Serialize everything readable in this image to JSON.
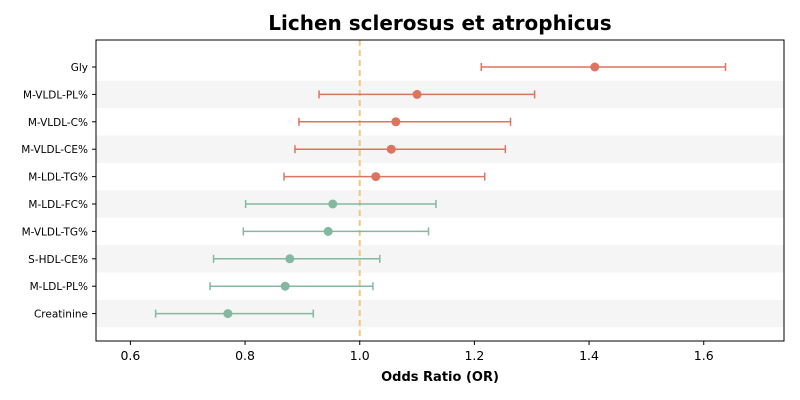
{
  "chart_data": {
    "type": "forest",
    "title": "Lichen sclerosus et atrophicus",
    "xlabel": "Odds Ratio (OR)",
    "ylabel": "",
    "xlim": [
      0.54,
      1.74
    ],
    "xticks": [
      0.6,
      0.8,
      1.0,
      1.2,
      1.4,
      1.6
    ],
    "xtick_labels": [
      "0.6",
      "0.8",
      "1.0",
      "1.2",
      "1.4",
      "1.6"
    ],
    "reference_line": 1.0,
    "grid": false,
    "categories": [
      "Gly",
      "M-VLDL-PL%",
      "M-VLDL-C%",
      "M-VLDL-CE%",
      "M-LDL-TG%",
      "M-LDL-FC%",
      "M-VLDL-TG%",
      "S-HDL-CE%",
      "M-LDL-PL%",
      "Creatinine"
    ],
    "or": [
      1.41,
      1.1,
      1.063,
      1.055,
      1.028,
      0.953,
      0.945,
      0.878,
      0.87,
      0.77
    ],
    "ci_low": [
      1.212,
      0.929,
      0.894,
      0.887,
      0.868,
      0.801,
      0.797,
      0.745,
      0.739,
      0.644
    ],
    "ci_high": [
      1.638,
      1.305,
      1.263,
      1.254,
      1.218,
      1.133,
      1.12,
      1.035,
      1.023,
      0.919
    ],
    "colors": {
      "risk": "#dc7560",
      "protective": "#85b8a0",
      "reference": "#f3c77f",
      "band": "#f5f5f5"
    }
  }
}
